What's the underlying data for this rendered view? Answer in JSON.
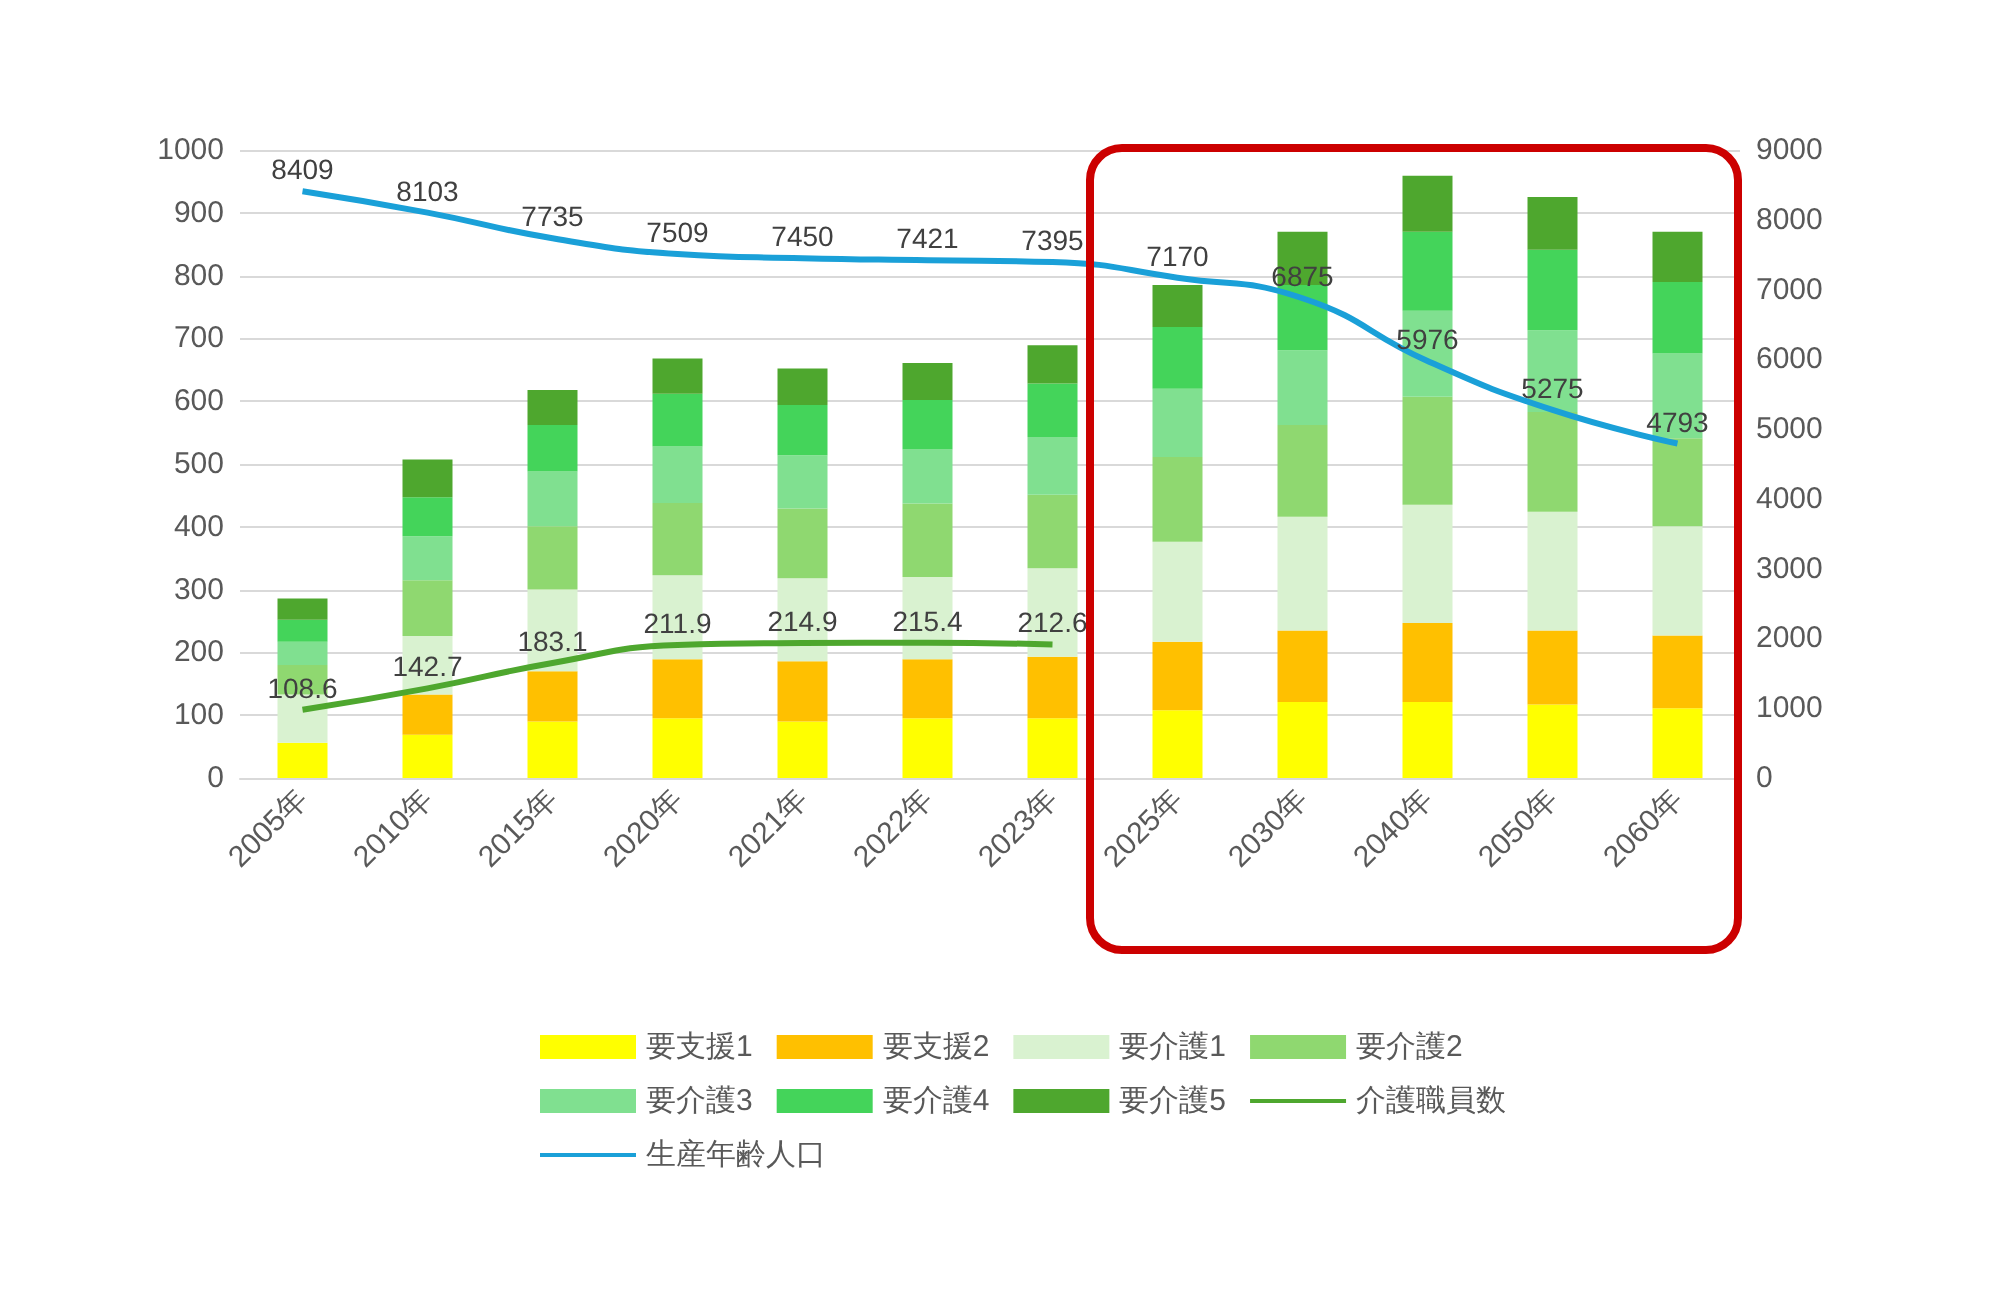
{
  "chart_data": {
    "type": "bar",
    "stacked": true,
    "categories": [
      "2005年",
      "2010年",
      "2015年",
      "2020年",
      "2021年",
      "2022年",
      "2023年",
      "2025年",
      "2030年",
      "2040年",
      "2050年",
      "2060年"
    ],
    "series": [
      {
        "name": "要支援1",
        "color": "#ffff00",
        "values": [
          56,
          69,
          90,
          95,
          90,
          95,
          95,
          108,
          121,
          121,
          117,
          111
        ]
      },
      {
        "name": "要支援2",
        "color": "#ffc000",
        "values": [
          null,
          64,
          80,
          94,
          96,
          94,
          98,
          109,
          114,
          126,
          118,
          116
        ]
      },
      {
        "name": "要介護1",
        "color": "#d9f2d0",
        "values": [
          77,
          93,
          130,
          134,
          132,
          131,
          141,
          159,
          181,
          188,
          189,
          174
        ]
      },
      {
        "name": "要介護2",
        "color": "#8fd870",
        "values": [
          47,
          89,
          101,
          115,
          111,
          117,
          117,
          135,
          146,
          172,
          159,
          140
        ]
      },
      {
        "name": "要介護3",
        "color": "#80e090",
        "values": [
          37,
          70,
          87,
          90,
          85,
          86,
          92,
          109,
          119,
          137,
          130,
          135
        ]
      },
      {
        "name": "要介護4",
        "color": "#44d45a",
        "values": [
          35,
          62,
          74,
          84,
          80,
          79,
          85,
          98,
          104,
          126,
          128,
          114
        ]
      },
      {
        "name": "要介護5",
        "color": "#4ea72e",
        "values": [
          34,
          60,
          56,
          56,
          58,
          59,
          61,
          67,
          85,
          89,
          84,
          80
        ]
      },
      {
        "name": "介護職員数",
        "type": "line",
        "color": "#4ea72e",
        "values": [
          108.6,
          142.7,
          183.1,
          211.9,
          214.9,
          215.4,
          212.6,
          null,
          null,
          null,
          null,
          null
        ],
        "value_labels": [
          "108.6",
          "142.7",
          "183.1",
          "211.9",
          "214.9",
          "215.4",
          "212.6",
          null,
          null,
          null,
          null,
          null
        ]
      },
      {
        "name": "生産年齢人口",
        "type": "line",
        "axis": "y2",
        "color": "#1aa0d8",
        "values": [
          8409,
          8103,
          7735,
          7509,
          7450,
          7421,
          7395,
          7170,
          6875,
          5976,
          5275,
          4793
        ],
        "value_labels": [
          "8409",
          "8103",
          "7735",
          "7509",
          "7450",
          "7421",
          "7395",
          "7170",
          "6875",
          "5976",
          "5275",
          "4793"
        ]
      }
    ],
    "ylim": [
      0,
      1000
    ],
    "yticks": [
      0,
      100,
      200,
      300,
      400,
      500,
      600,
      700,
      800,
      900,
      1000
    ],
    "y2lim": [
      0,
      9000
    ],
    "y2ticks": [
      0,
      1000,
      2000,
      3000,
      4000,
      5000,
      6000,
      7000,
      8000,
      9000
    ],
    "grid": "y",
    "legend": "bottom",
    "marker": "none"
  }
}
